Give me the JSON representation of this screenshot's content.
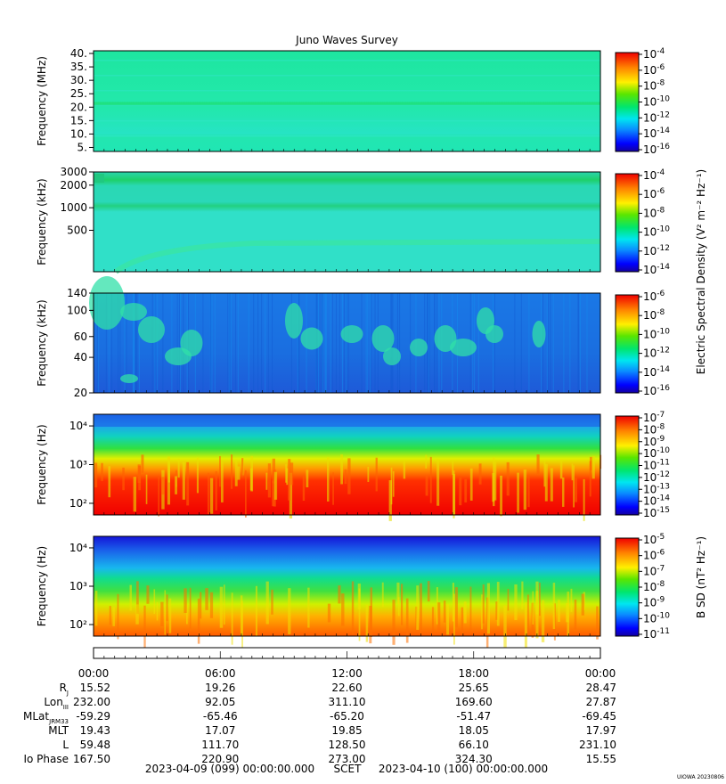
{
  "title": "Juno Waves Survey",
  "chart_data": {
    "type": "heatmap",
    "title": "Juno Waves Survey",
    "panels": [
      {
        "id": "p1",
        "ylabel": "Frequency (MHz)",
        "yscale": "linear",
        "ylim": [
          3.5,
          41
        ],
        "yticks": [
          "40.",
          "35.",
          "30.",
          "25.",
          "20.",
          "15.",
          "10.",
          "5."
        ],
        "ytick_values": [
          40,
          35,
          30,
          25,
          20,
          15,
          10,
          5
        ],
        "colorbar_ticks": [
          "-4",
          "-6",
          "-8",
          "-10",
          "-12",
          "-14",
          "-16"
        ],
        "colorbar_label": "",
        "features": "uniform background ~1e-12 with a band near 21 MHz"
      },
      {
        "id": "p2",
        "ylabel": "Frequency (kHz)",
        "yscale": "log",
        "ylim": [
          140,
          3000
        ],
        "yticks": [
          "3000",
          "2000",
          "1000",
          "500"
        ],
        "ytick_values": [
          3000,
          2000,
          1000,
          500
        ],
        "colorbar_ticks": [
          "-4",
          "-6",
          "-8",
          "-10",
          "-12",
          "-14"
        ],
        "colorbar_label": "",
        "features": "bands near 2000 kHz and 1100 kHz, rising arc at low frequency early in the day"
      },
      {
        "id": "p3",
        "ylabel": "Frequency (kHz)",
        "yscale": "log",
        "ylim": [
          20,
          140
        ],
        "yticks": [
          "140",
          "100",
          "60",
          "40",
          "20"
        ],
        "ytick_values": [
          140,
          100,
          60,
          40,
          20
        ],
        "colorbar_ticks": [
          "-6",
          "-8",
          "-10",
          "-12",
          "-14",
          "-16"
        ],
        "colorbar_label": "Electric Spectral Density (V² m⁻² Hz⁻¹)",
        "features": "blue background with sporadic cyan/green drifting emission patches"
      },
      {
        "id": "p4",
        "ylabel": "Frequency (Hz)",
        "yscale": "log",
        "ylim": [
          50,
          20000
        ],
        "yticks": [
          "10⁴",
          "10³",
          "10²"
        ],
        "ytick_values": [
          10000,
          1000,
          100
        ],
        "colorbar_ticks": [
          "-7",
          "-8",
          "-9",
          "-10",
          "-11",
          "-12",
          "-13",
          "-14",
          "-15"
        ],
        "colorbar_label": "",
        "features": "intense (red) emission below ~400 Hz, green/yellow to ~2 kHz, blue above"
      },
      {
        "id": "p5",
        "ylabel": "Frequency (Hz)",
        "yscale": "log",
        "ylim": [
          50,
          20000
        ],
        "yticks": [
          "10⁴",
          "10³",
          "10²"
        ],
        "ytick_values": [
          10000,
          1000,
          100
        ],
        "colorbar_ticks": [
          "-5",
          "-6",
          "-7",
          "-8",
          "-9",
          "-10",
          "-11"
        ],
        "colorbar_label": "B SD (nT² Hz⁻¹)",
        "features": "orange/red below ~200 Hz, green to ~1 kHz, blue above"
      }
    ],
    "x_ticks": [
      "00:00",
      "06:00",
      "12:00",
      "18:00",
      "00:00"
    ],
    "ephemeris": [
      {
        "label": "R",
        "sub": "J",
        "values": [
          "15.52",
          "19.26",
          "22.60",
          "25.65",
          "28.47"
        ]
      },
      {
        "label": "Lon",
        "sub": "III",
        "values": [
          "232.00",
          "92.05",
          "311.10",
          "169.60",
          "27.87"
        ]
      },
      {
        "label": "MLat",
        "sub": "JRM33",
        "values": [
          "-59.29",
          "-65.46",
          "-65.20",
          "-51.47",
          "-69.45"
        ]
      },
      {
        "label": "MLT",
        "sub": "",
        "values": [
          "19.43",
          "17.07",
          "19.85",
          "18.05",
          "17.97"
        ]
      },
      {
        "label": "L",
        "sub": "",
        "values": [
          "59.48",
          "111.70",
          "128.50",
          "66.10",
          "231.10"
        ]
      },
      {
        "label": "Io Phase",
        "sub": "",
        "values": [
          "167.50",
          "220.90",
          "273.00",
          "324.30",
          "15.55"
        ]
      }
    ],
    "time_start": "2023-04-09 (099) 00:00:00.000",
    "time_label": "SCET",
    "time_end": "2023-04-10 (100) 00:00:00.000",
    "footer_stamp": "UIOWA 20230806"
  }
}
